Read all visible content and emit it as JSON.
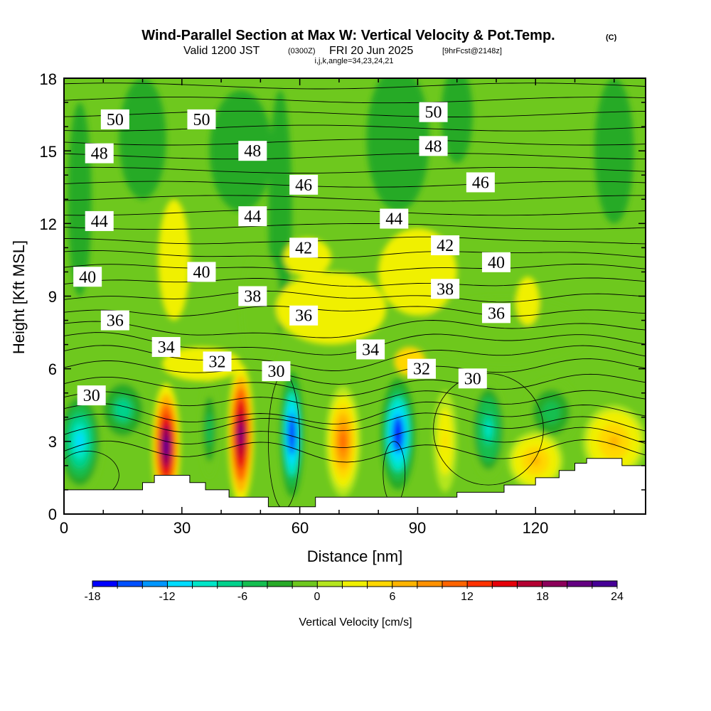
{
  "title": {
    "main": "Wind-Parallel Section at Max W: Vertical Velocity & Pot.Temp.",
    "copyright": "(C)",
    "valid_prefix": "Valid 1200 JST",
    "utc": "(0300Z)",
    "date": "FRI 20 Jun 2025",
    "forecast": "[9hrFcst@2148z]",
    "indices": "i,j,k,angle=34,23,24,21"
  },
  "chart_data": {
    "type": "heatmap",
    "xlabel": "Distance [nm]",
    "ylabel": "Height [Kft MSL]",
    "xlim": [
      0,
      148
    ],
    "ylim": [
      0,
      18
    ],
    "x_ticks": [
      "0",
      "30",
      "60",
      "90",
      "120"
    ],
    "y_ticks": [
      "0",
      "3",
      "6",
      "9",
      "12",
      "15",
      "18"
    ],
    "colorbar": {
      "label": "Vertical Velocity [cm/s]",
      "min": -18,
      "max": 24,
      "step": 2,
      "tick_labels": [
        "-18",
        "-12",
        "-6",
        "0",
        "6",
        "12",
        "18",
        "24"
      ],
      "colors": [
        "#0000ff",
        "#0050ff",
        "#0096ff",
        "#00dcff",
        "#00e6c8",
        "#00d28c",
        "#14be50",
        "#28aa28",
        "#6ec81e",
        "#b4e61e",
        "#f0f000",
        "#ffd700",
        "#ffb400",
        "#ff9100",
        "#ff6400",
        "#ff3200",
        "#e6000a",
        "#b40032",
        "#8c005a",
        "#640082",
        "#460096"
      ]
    },
    "vertical_velocity_maxima": [
      {
        "x": 26,
        "y": 2.8,
        "w": 23
      },
      {
        "x": 45,
        "y": 3.3,
        "w": 21
      },
      {
        "x": 71,
        "y": 3.0,
        "w": 10
      },
      {
        "x": 97,
        "y": 3.0,
        "w": 4
      },
      {
        "x": 120,
        "y": 2.5,
        "w": 6
      }
    ],
    "vertical_velocity_minima": [
      {
        "x": 58,
        "y": 3.3,
        "w": -18
      },
      {
        "x": 85,
        "y": 3.3,
        "w": -17
      },
      {
        "x": 37,
        "y": 3.5,
        "w": -5
      },
      {
        "x": 4,
        "y": 3.0,
        "w": -11
      }
    ],
    "terrain_top": [
      [
        0,
        1.0
      ],
      [
        20,
        1.0
      ],
      [
        20,
        1.3
      ],
      [
        23,
        1.3
      ],
      [
        23,
        1.6
      ],
      [
        32,
        1.6
      ],
      [
        32,
        1.3
      ],
      [
        36,
        1.3
      ],
      [
        36,
        1.0
      ],
      [
        42,
        1.0
      ],
      [
        42,
        0.7
      ],
      [
        52,
        0.7
      ],
      [
        52,
        0.3
      ],
      [
        64,
        0.3
      ],
      [
        64,
        0.7
      ],
      [
        100,
        0.7
      ],
      [
        100,
        0.9
      ],
      [
        112,
        0.9
      ],
      [
        112,
        1.2
      ],
      [
        120,
        1.2
      ],
      [
        120,
        1.5
      ],
      [
        126,
        1.5
      ],
      [
        126,
        1.8
      ],
      [
        130,
        1.8
      ],
      [
        130,
        2.1
      ],
      [
        133,
        2.1
      ],
      [
        133,
        2.3
      ],
      [
        142,
        2.3
      ],
      [
        142,
        2.0
      ],
      [
        148,
        2.0
      ]
    ],
    "theta_contour_labels": [
      {
        "text": "50",
        "x": 13,
        "y": 16.3
      },
      {
        "text": "50",
        "x": 35,
        "y": 16.3
      },
      {
        "text": "50",
        "x": 94,
        "y": 16.6
      },
      {
        "text": "48",
        "x": 9,
        "y": 14.9
      },
      {
        "text": "48",
        "x": 48,
        "y": 15.0
      },
      {
        "text": "48",
        "x": 94,
        "y": 15.2
      },
      {
        "text": "46",
        "x": 61,
        "y": 13.6
      },
      {
        "text": "46",
        "x": 106,
        "y": 13.7
      },
      {
        "text": "44",
        "x": 9,
        "y": 12.1
      },
      {
        "text": "44",
        "x": 48,
        "y": 12.3
      },
      {
        "text": "44",
        "x": 84,
        "y": 12.2
      },
      {
        "text": "42",
        "x": 61,
        "y": 11.0
      },
      {
        "text": "42",
        "x": 97,
        "y": 11.1
      },
      {
        "text": "40",
        "x": 6,
        "y": 9.8
      },
      {
        "text": "40",
        "x": 35,
        "y": 10.0
      },
      {
        "text": "40",
        "x": 110,
        "y": 10.4
      },
      {
        "text": "38",
        "x": 48,
        "y": 9.0
      },
      {
        "text": "38",
        "x": 97,
        "y": 9.3
      },
      {
        "text": "36",
        "x": 13,
        "y": 8.0
      },
      {
        "text": "36",
        "x": 61,
        "y": 8.2
      },
      {
        "text": "36",
        "x": 110,
        "y": 8.3
      },
      {
        "text": "34",
        "x": 26,
        "y": 6.9
      },
      {
        "text": "34",
        "x": 78,
        "y": 6.8
      },
      {
        "text": "32",
        "x": 39,
        "y": 6.3
      },
      {
        "text": "32",
        "x": 91,
        "y": 6.0
      },
      {
        "text": "30",
        "x": 7,
        "y": 4.9
      },
      {
        "text": "30",
        "x": 54,
        "y": 5.9
      },
      {
        "text": "30",
        "x": 104,
        "y": 5.6
      }
    ],
    "theta_lines": {
      "levels_from": 26,
      "levels_to": 52,
      "step": 1
    }
  }
}
